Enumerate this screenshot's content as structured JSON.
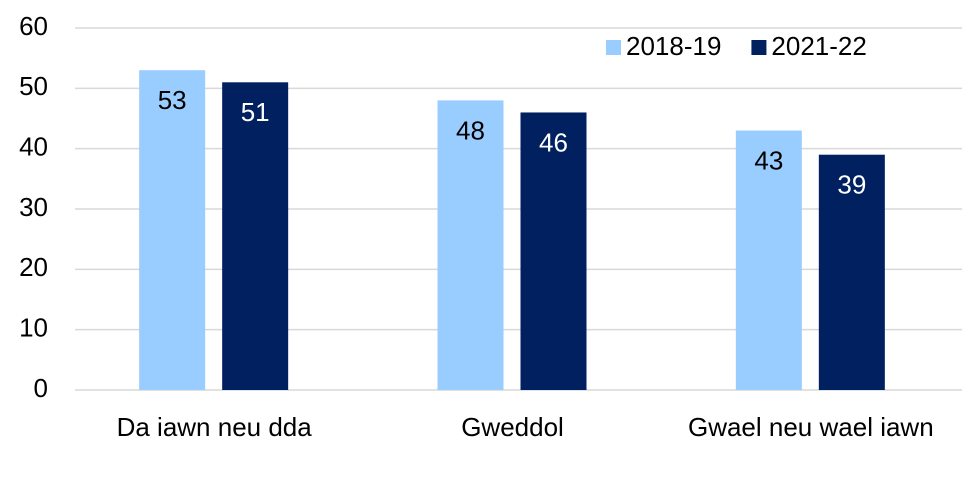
{
  "chart_data": {
    "type": "bar",
    "categories": [
      "Da iawn neu dda",
      "Gweddol",
      "Gwael neu wael iawn"
    ],
    "series": [
      {
        "name": "2018-19",
        "color": "#99ccff",
        "values": [
          53,
          48,
          43
        ]
      },
      {
        "name": "2021-22",
        "color": "#002060",
        "values": [
          51,
          46,
          39
        ]
      }
    ],
    "ylim": [
      0,
      60
    ],
    "yticks": [
      0,
      10,
      20,
      30,
      40,
      50,
      60
    ],
    "grid": true,
    "legend": "upper right"
  }
}
